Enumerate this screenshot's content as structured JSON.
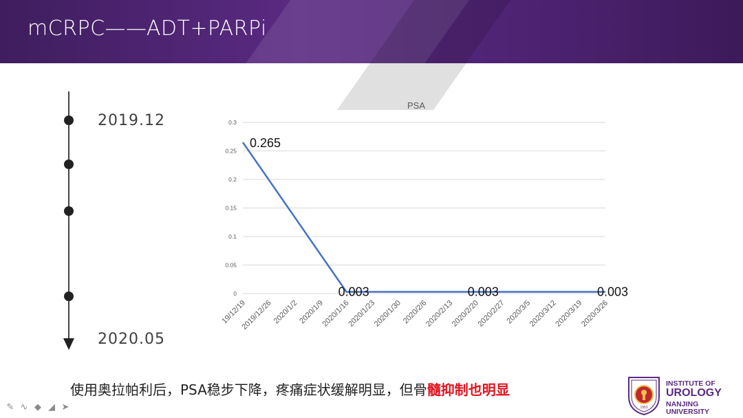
{
  "slide": {
    "title": "mCRPC——ADT+PARPi",
    "caption_normal": "使用奥拉帕利后，PSA稳步下降，疼痛症状缓解明显，但骨",
    "caption_highlight": "髓抑制也明显",
    "highlight_color": "#e0141e"
  },
  "timeline": {
    "start_label": "2019.12",
    "end_label": "2020.05"
  },
  "logo": {
    "line1": "INSTITUTE OF",
    "line2": "UROLOGY",
    "line3": "NANJING",
    "line4": "UNIVERSITY",
    "seal_year": "1953",
    "color": "#5a2a82"
  },
  "toolbar_icons": [
    "pen-icon",
    "scribble-icon",
    "highlighter-icon",
    "eraser-icon",
    "pointer-icon"
  ],
  "chart_data": {
    "type": "line",
    "title": "PSA",
    "categories": [
      "2019/12/19",
      "2019/12/26",
      "2020/1/2",
      "2020/1/9",
      "2020/1/16",
      "2020/1/23",
      "2020/1/30",
      "2020/2/6",
      "2020/2/13",
      "2020/2/20",
      "2020/2/27",
      "2020/3/5",
      "2020/3/12",
      "2020/3/19",
      "2020/3/26"
    ],
    "tick_labels": [
      "19/12/19",
      "2019/12/26",
      "2020/1/2",
      "2020/1/9",
      "2020/1/16",
      "2020/1/23",
      "2020/1/30",
      "2020/2/6",
      "2020/2/13",
      "2020/2/20",
      "2020/2/27",
      "2020/3/5",
      "2020/3/12",
      "2020/3/19",
      "2020/3/26"
    ],
    "series": [
      {
        "x": [
          "2019/12/19",
          "2020/1/16",
          "2020/2/20",
          "2020/3/26"
        ],
        "values": [
          0.265,
          0.003,
          0.003,
          0.003
        ]
      }
    ],
    "data_labels": [
      "0.265",
      "0.003",
      "0.003",
      "0.003"
    ],
    "y_ticks": [
      "0",
      "0.05",
      "0.1",
      "0.15",
      "0.2",
      "0.25",
      "0.3"
    ],
    "ylim": [
      0,
      0.3
    ],
    "grid": true,
    "line_color": "#4472c4"
  }
}
